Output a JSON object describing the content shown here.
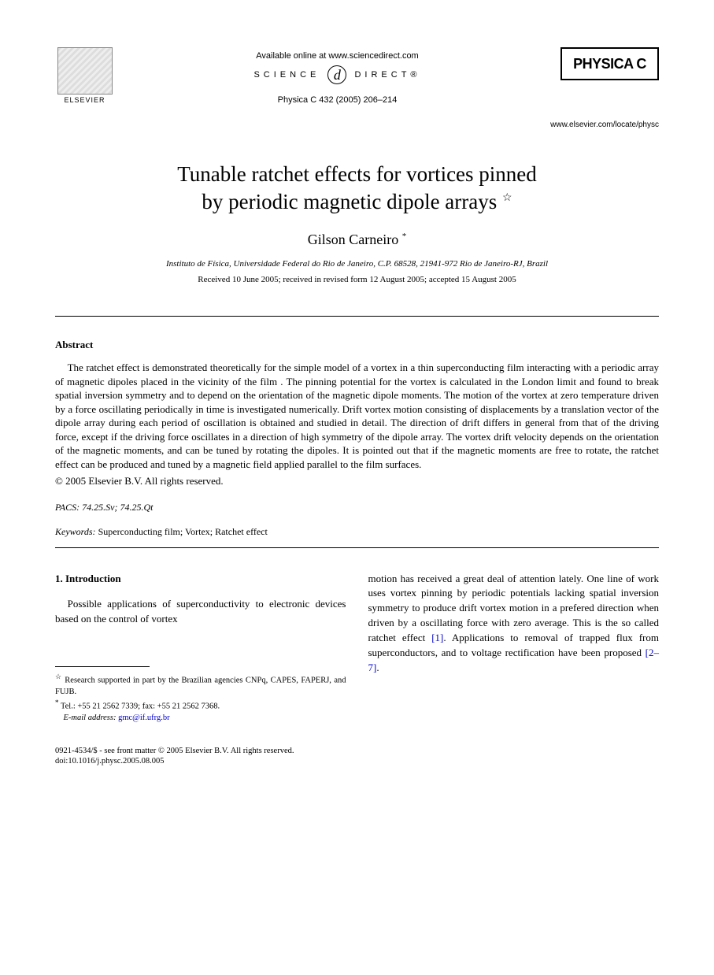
{
  "header": {
    "publisher_name": "ELSEVIER",
    "available_text": "Available online at www.sciencedirect.com",
    "science_label_1": "SCIENCE",
    "science_label_2": "DIRECT®",
    "journal_ref": "Physica C 432 (2005) 206–214",
    "journal_name": "PHYSICA C",
    "journal_url": "www.elsevier.com/locate/physc"
  },
  "article": {
    "title_line1": "Tunable ratchet effects for vortices pinned",
    "title_line2": "by periodic magnetic dipole arrays",
    "title_star": "☆",
    "author": "Gilson Carneiro",
    "author_star": "*",
    "affiliation": "Instituto de Física, Universidade Federal do Rio de Janeiro, C.P. 68528, 21941-972 Rio de Janeiro-RJ, Brazil",
    "dates": "Received 10 June 2005; received in revised form 12 August 2005; accepted 15 August 2005"
  },
  "abstract": {
    "heading": "Abstract",
    "text": "The ratchet effect is demonstrated theoretically for the simple model of a vortex in a thin superconducting film interacting with a periodic array of magnetic dipoles placed in the vicinity of the film . The pinning potential for the vortex is calculated in the London limit and found to break spatial inversion symmetry and to depend on the orientation of the magnetic dipole moments. The motion of the vortex at zero temperature driven by a force oscillating periodically in time is investigated numerically. Drift vortex motion consisting of displacements by a translation vector of the dipole array during each period of oscillation is obtained and studied in detail. The direction of drift differs in general from that of the driving force, except if the driving force oscillates in a direction of high symmetry of the dipole array. The vortex drift velocity depends on the orientation of the magnetic moments, and can be tuned by rotating the dipoles. It is pointed out that if the magnetic moments are free to rotate, the ratchet effect can be produced and tuned by a magnetic field applied parallel to the film surfaces.",
    "copyright": "© 2005 Elsevier B.V. All rights reserved."
  },
  "meta": {
    "pacs_label": "PACS:",
    "pacs_values": "74.25.Sv; 74.25.Qt",
    "keywords_label": "Keywords:",
    "keywords_values": "Superconducting film; Vortex; Ratchet effect"
  },
  "body": {
    "section_heading": "1. Introduction",
    "col1_text": "Possible applications of superconductivity to electronic devices based on the control of vortex",
    "col2_text_1": "motion has received a great deal of attention lately. One line of work uses vortex pinning by periodic potentials lacking spatial inversion symmetry to produce drift vortex motion in a prefered direction when driven by a oscillating force with zero average. This is the so called ratchet effect ",
    "col2_ref1": "[1]",
    "col2_text_2": ". Applications to removal of trapped flux from superconductors, and to voltage rectification have been proposed ",
    "col2_ref2": "[2–7]",
    "col2_text_3": "."
  },
  "footnotes": {
    "note1_star": "☆",
    "note1_text": "Research supported in part by the Brazilian agencies CNPq, CAPES, FAPERJ, and FUJB.",
    "note2_star": "*",
    "note2_text": "Tel.: +55 21 2562 7339; fax: +55 21 2562 7368.",
    "email_label": "E-mail address:",
    "email": "gmc@if.ufrg.br"
  },
  "footer": {
    "line1": "0921-4534/$ - see front matter © 2005 Elsevier B.V. All rights reserved.",
    "line2": "doi:10.1016/j.physc.2005.08.005"
  }
}
